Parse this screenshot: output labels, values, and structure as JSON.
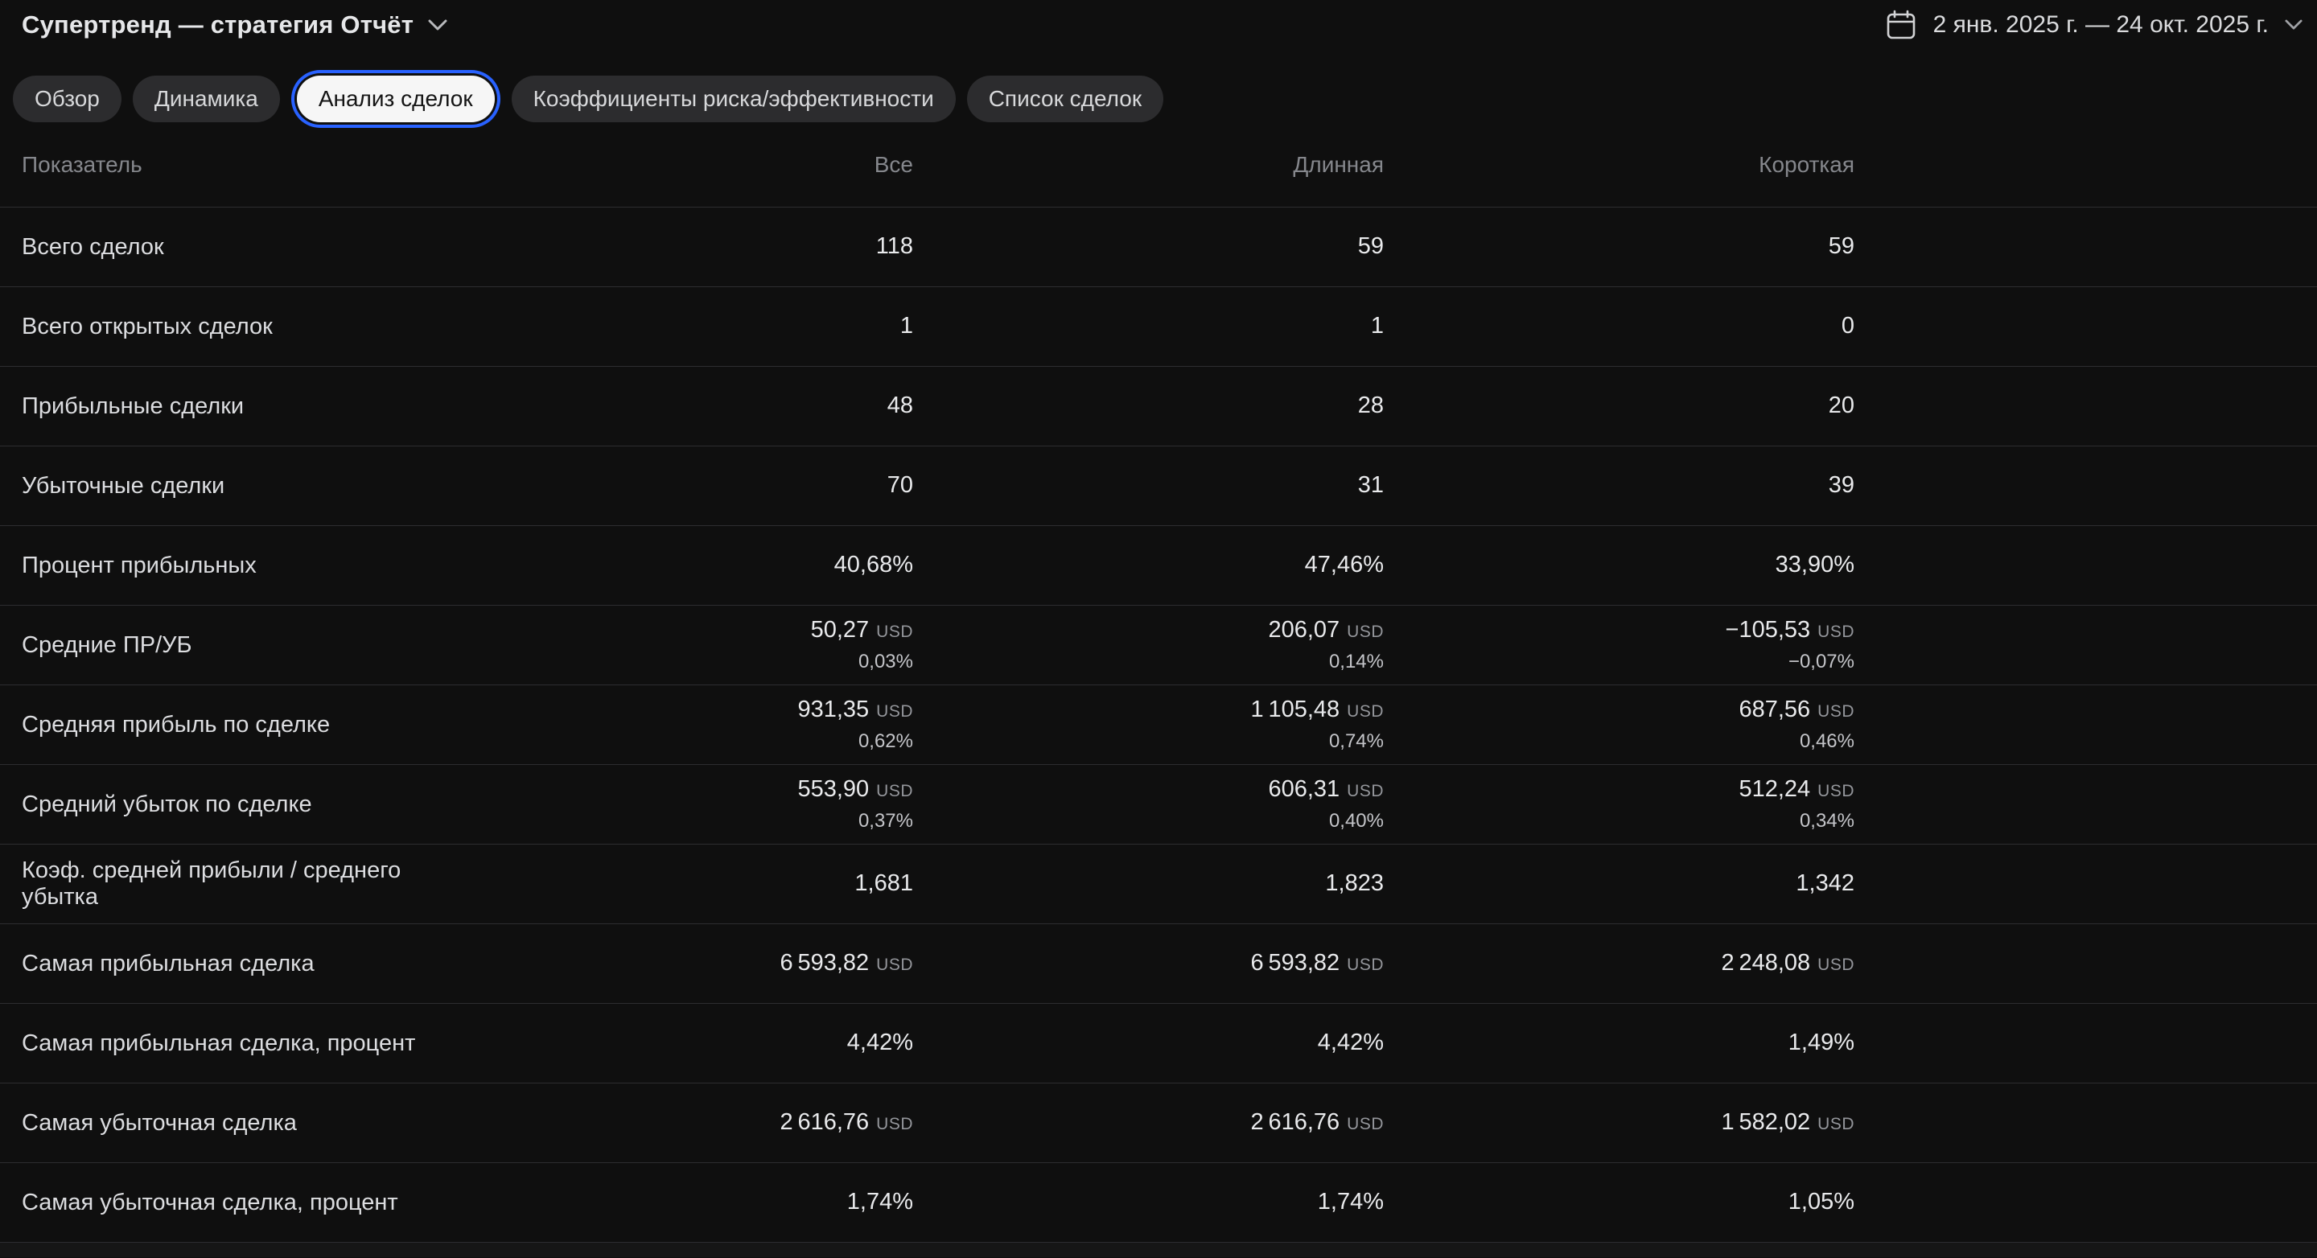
{
  "header": {
    "title": "Супертренд — стратегия Отчёт",
    "date_range": "2 янв. 2025 г. — 24 окт. 2025 г."
  },
  "tabs": [
    {
      "label": "Обзор",
      "active": false
    },
    {
      "label": "Динамика",
      "active": false
    },
    {
      "label": "Анализ сделок",
      "active": true
    },
    {
      "label": "Коэффициенты риска/эффективности",
      "active": false
    },
    {
      "label": "Список сделок",
      "active": false
    }
  ],
  "table": {
    "columns": [
      "Показатель",
      "Все",
      "Длинная",
      "Короткая"
    ],
    "rows": [
      {
        "label": "Всего сделок",
        "all": {
          "v": "118"
        },
        "long": {
          "v": "59"
        },
        "short": {
          "v": "59"
        }
      },
      {
        "label": "Всего открытых сделок",
        "all": {
          "v": "1"
        },
        "long": {
          "v": "1"
        },
        "short": {
          "v": "0"
        }
      },
      {
        "label": "Прибыльные сделки",
        "all": {
          "v": "48"
        },
        "long": {
          "v": "28"
        },
        "short": {
          "v": "20"
        }
      },
      {
        "label": "Убыточные сделки",
        "all": {
          "v": "70"
        },
        "long": {
          "v": "31"
        },
        "short": {
          "v": "39"
        }
      },
      {
        "label": "Процент прибыльных",
        "all": {
          "v": "40,68%"
        },
        "long": {
          "v": "47,46%"
        },
        "short": {
          "v": "33,90%"
        }
      },
      {
        "label": "Средние ПР/УБ",
        "all": {
          "v": "50,27",
          "cur": "USD",
          "pct": "0,03%"
        },
        "long": {
          "v": "206,07",
          "cur": "USD",
          "pct": "0,14%"
        },
        "short": {
          "v": "−105,53",
          "cur": "USD",
          "pct": "−0,07%"
        }
      },
      {
        "label": "Средняя прибыль по сделке",
        "all": {
          "v": "931,35",
          "cur": "USD",
          "pct": "0,62%"
        },
        "long": {
          "v": "1 105,48",
          "cur": "USD",
          "pct": "0,74%"
        },
        "short": {
          "v": "687,56",
          "cur": "USD",
          "pct": "0,46%"
        }
      },
      {
        "label": "Средний убыток по сделке",
        "all": {
          "v": "553,90",
          "cur": "USD",
          "pct": "0,37%"
        },
        "long": {
          "v": "606,31",
          "cur": "USD",
          "pct": "0,40%"
        },
        "short": {
          "v": "512,24",
          "cur": "USD",
          "pct": "0,34%"
        }
      },
      {
        "label": "Коэф. средней прибыли / среднего убытка",
        "all": {
          "v": "1,681"
        },
        "long": {
          "v": "1,823"
        },
        "short": {
          "v": "1,342"
        }
      },
      {
        "label": "Самая прибыльная сделка",
        "all": {
          "v": "6 593,82",
          "cur": "USD"
        },
        "long": {
          "v": "6 593,82",
          "cur": "USD"
        },
        "short": {
          "v": "2 248,08",
          "cur": "USD"
        }
      },
      {
        "label": "Самая прибыльная сделка, процент",
        "all": {
          "v": "4,42%"
        },
        "long": {
          "v": "4,42%"
        },
        "short": {
          "v": "1,49%"
        }
      },
      {
        "label": "Самая убыточная сделка",
        "all": {
          "v": "2 616,76",
          "cur": "USD"
        },
        "long": {
          "v": "2 616,76",
          "cur": "USD"
        },
        "short": {
          "v": "1 582,02",
          "cur": "USD"
        }
      },
      {
        "label": "Самая убыточная сделка, процент",
        "all": {
          "v": "1,74%"
        },
        "long": {
          "v": "1,74%"
        },
        "short": {
          "v": "1,05%"
        }
      }
    ]
  },
  "colors": {
    "accent_blue": "#2962ff"
  }
}
